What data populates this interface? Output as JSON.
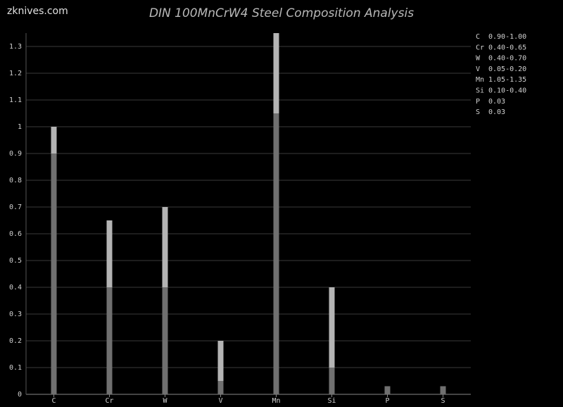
{
  "site": "zknives.com",
  "chart_data": {
    "type": "range-bar",
    "title": "DIN 100MnCrW4 Steel Composition Analysis",
    "categories": [
      "C",
      "Cr",
      "W",
      "V",
      "Mn",
      "Si",
      "P",
      "S"
    ],
    "series": [
      {
        "color": "#b4b4b4",
        "values": [
          1.0,
          0.65,
          0.7,
          0.2,
          1.35,
          0.4,
          0.03,
          0.03
        ]
      },
      {
        "color": "#707070",
        "values": [
          0.9,
          0.4,
          0.4,
          0.05,
          1.05,
          0.1,
          0.03,
          0.03
        ]
      }
    ],
    "ylim": [
      0,
      1.35
    ],
    "yticks": [
      0,
      0.1,
      0.2,
      0.3,
      0.4,
      0.5,
      0.6,
      0.7,
      0.8,
      0.9,
      1,
      1.1,
      1.2,
      1.3
    ],
    "grid": true,
    "legend": [
      {
        "label": "C",
        "text": "0.90-1.00"
      },
      {
        "label": "Cr",
        "text": "0.40-0.65"
      },
      {
        "label": "W",
        "text": "0.40-0.70"
      },
      {
        "label": "V",
        "text": "0.05-0.20"
      },
      {
        "label": "Mn",
        "text": "1.05-1.35"
      },
      {
        "label": "Si",
        "text": "0.10-0.40"
      },
      {
        "label": "P",
        "text": "0.03"
      },
      {
        "label": "S",
        "text": "0.03"
      }
    ]
  }
}
